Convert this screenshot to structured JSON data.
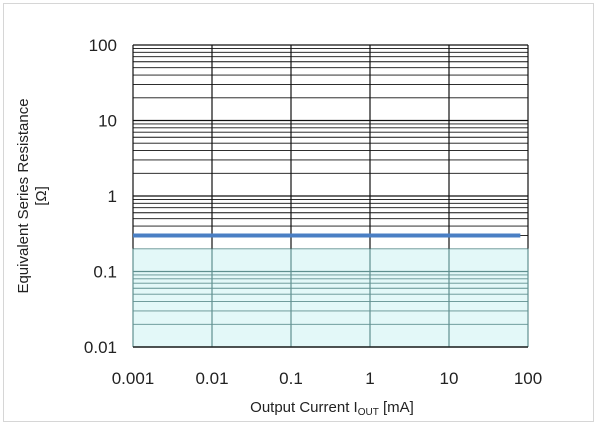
{
  "chart_data": {
    "type": "area",
    "title": "",
    "xlabel": {
      "main": "Output  Current I",
      "subscript": "OUT",
      "suffix": " [mA]"
    },
    "ylabel_lines": [
      "Equivalent  Series Resistance",
      "[Ω]"
    ],
    "x_scale": "log",
    "y_scale": "log",
    "xlim": [
      0.001,
      100
    ],
    "ylim": [
      0.01,
      100
    ],
    "x_ticks": [
      {
        "value": 0.001,
        "label": "0.001"
      },
      {
        "value": 0.01,
        "label": "0.01"
      },
      {
        "value": 0.1,
        "label": "0.1"
      },
      {
        "value": 1,
        "label": "1"
      },
      {
        "value": 10,
        "label": "10"
      },
      {
        "value": 100,
        "label": "100"
      }
    ],
    "y_ticks": [
      {
        "value": 0.01,
        "label": "0.01"
      },
      {
        "value": 0.1,
        "label": "0.1"
      },
      {
        "value": 1,
        "label": "1"
      },
      {
        "value": 10,
        "label": "10"
      },
      {
        "value": 100,
        "label": "100"
      }
    ],
    "grid": true,
    "stable_region": {
      "x_range": [
        0.001,
        100
      ],
      "y_range": [
        0.01,
        0.2
      ],
      "fill_color": "#e3f8f8"
    },
    "boundary_line": {
      "x": [
        0.001,
        80
      ],
      "y": [
        0.3,
        0.3
      ],
      "color": "#4a7fc4"
    },
    "colors": {
      "grid_major": "#111111",
      "grid_minor": "#111111",
      "grid_region": "#5f8f8f",
      "axis": "#222222"
    }
  }
}
